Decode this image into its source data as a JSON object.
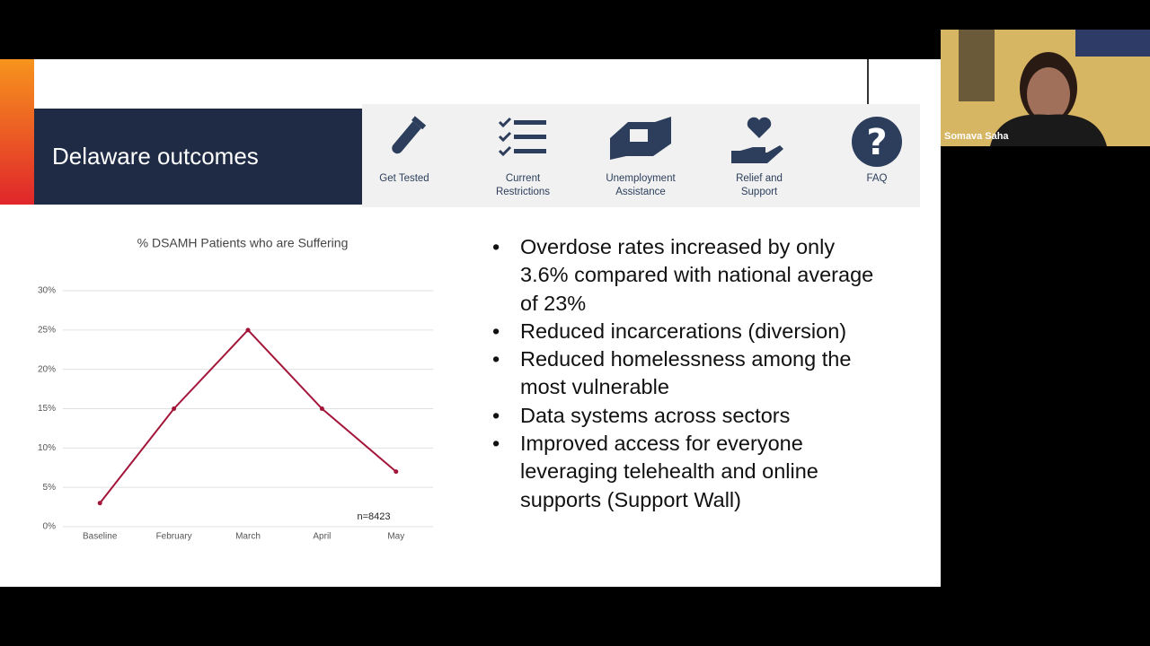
{
  "slide": {
    "title": "Delaware outcomes",
    "nav": [
      "Get Tested",
      "Current Restrictions",
      "Unemployment Assistance",
      "Relief and Support",
      "FAQ"
    ],
    "bullets": [
      "Overdose rates increased by only 3.6% compared with national average of 23%",
      "Reduced incarcerations (diversion)",
      "Reduced homelessness among the most vulnerable",
      "Data systems across sectors",
      "Improved access for everyone leveraging telehealth and online supports (Support Wall)"
    ]
  },
  "participant": {
    "name": "Somava Saha"
  },
  "chart_data": {
    "type": "line",
    "title": "% DSAMH Patients who are Suffering",
    "categories": [
      "Baseline",
      "February",
      "March",
      "April",
      "May"
    ],
    "values": [
      3,
      15,
      25,
      15,
      7
    ],
    "color": "#a3163a",
    "ylim": [
      0,
      30
    ],
    "yticks": [
      {
        "value": 0,
        "label": "0%"
      },
      {
        "value": 5,
        "label": "5%"
      },
      {
        "value": 10,
        "label": "10%"
      },
      {
        "value": 15,
        "label": "15%"
      },
      {
        "value": 20,
        "label": "20%"
      },
      {
        "value": 25,
        "label": "25%"
      },
      {
        "value": 30,
        "label": "30%"
      }
    ],
    "grid": true,
    "annotation": "n=8423"
  }
}
